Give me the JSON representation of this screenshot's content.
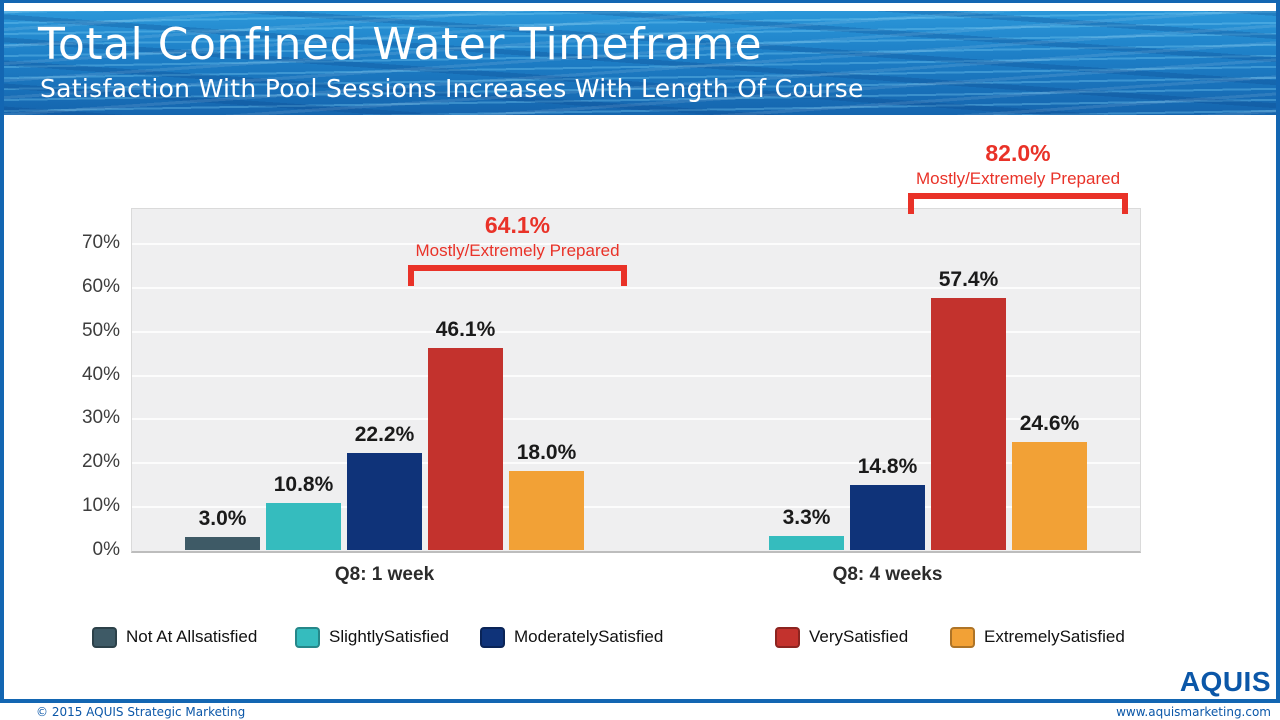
{
  "slide": {
    "title": "Total Confined Water Timeframe",
    "subtitle": "Satisfaction With Pool Sessions Increases With Length Of Course"
  },
  "chart_data": {
    "type": "bar",
    "title": "Total Confined Water Timeframe",
    "categories": [
      "Q8: 1 week",
      "Q8: 4 weeks"
    ],
    "series": [
      {
        "name": "Not At Allsatisfied",
        "color": "#3e5a66",
        "values": [
          3.0,
          null
        ],
        "labels": [
          "3.0%",
          null
        ]
      },
      {
        "name": "SlightlySatisfied",
        "color": "#35bcbe",
        "values": [
          10.8,
          3.3
        ],
        "labels": [
          "10.8%",
          "3.3%"
        ]
      },
      {
        "name": "ModeratelySatisfied",
        "color": "#0f3379",
        "values": [
          22.2,
          14.8
        ],
        "labels": [
          "22.2%",
          "14.8%"
        ]
      },
      {
        "name": "VerySatisfied",
        "color": "#c3322d",
        "values": [
          46.1,
          57.4
        ],
        "labels": [
          "46.1%",
          "57.4%"
        ]
      },
      {
        "name": "ExtremelySatisfied",
        "color": "#f2a136",
        "values": [
          18.0,
          24.6
        ],
        "labels": [
          "18.0%",
          "24.6%"
        ]
      }
    ],
    "yticks": [
      "0%",
      "10%",
      "20%",
      "30%",
      "40%",
      "50%",
      "60%",
      "70%"
    ],
    "ytick_values": [
      0,
      10,
      20,
      30,
      40,
      50,
      60,
      70
    ],
    "ylim": [
      0,
      78
    ],
    "xlabel": "",
    "ylabel": "",
    "grid": true,
    "legend_position": "bottom",
    "annotations": [
      {
        "value": "64.1%",
        "label": "Mostly/Extremely Prepared",
        "category": "Q8: 1 week",
        "covers": [
          "VerySatisfied",
          "ExtremelySatisfied"
        ]
      },
      {
        "value": "82.0%",
        "label": "Mostly/Extremely Prepared",
        "category": "Q8: 4 weeks",
        "covers": [
          "VerySatisfied",
          "ExtremelySatisfied"
        ]
      }
    ]
  },
  "footer": {
    "copyright": "© 2015 AQUIS Strategic Marketing",
    "website": "www.aquismarketing.com",
    "logo": "AQUIS"
  },
  "colors": {
    "annotation_red": "#e93228",
    "frame_blue": "#1366b2",
    "footer_text": "#0b57a8",
    "plot_bg": "#efeff0",
    "grid_line": "#fcfcfc"
  }
}
